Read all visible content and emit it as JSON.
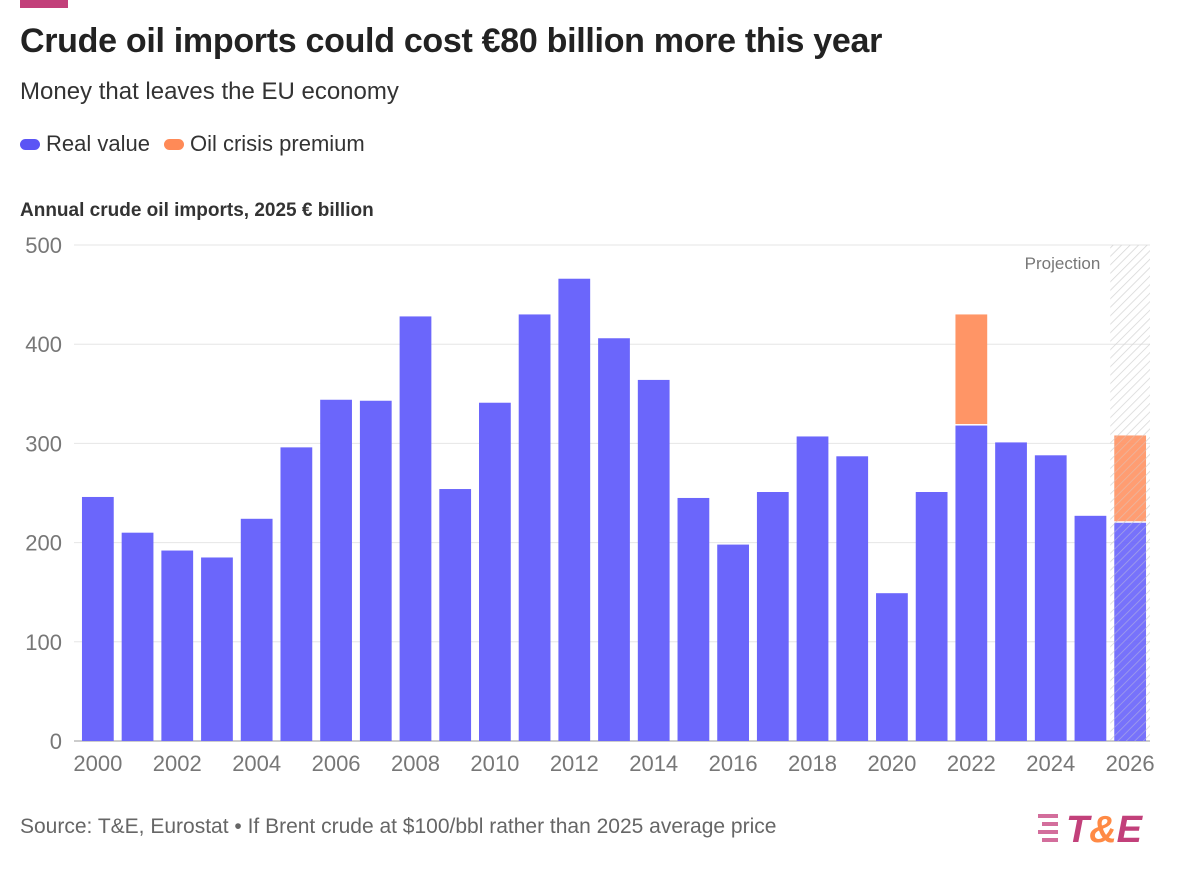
{
  "title": "Crude oil imports could cost €80 billion more this year",
  "subtitle": "Money that leaves the EU economy",
  "source": "Source: T&E, Eurostat • If Brent crude at $100/bbl rather than 2025 average price",
  "logo_text": "T&E",
  "chart_data": {
    "type": "bar",
    "stacked": true,
    "ylabel": "Annual crude oil imports, 2025 € billion",
    "ylim": [
      0,
      500
    ],
    "yticks": [
      0,
      100,
      200,
      300,
      400,
      500
    ],
    "grid": true,
    "legend_placement": "top-left",
    "annotation": "Projection",
    "projection_category": "2026",
    "categories": [
      "2000",
      "2001",
      "2002",
      "2003",
      "2004",
      "2005",
      "2006",
      "2007",
      "2008",
      "2009",
      "2010",
      "2011",
      "2012",
      "2013",
      "2014",
      "2015",
      "2016",
      "2017",
      "2018",
      "2019",
      "2020",
      "2021",
      "2022",
      "2023",
      "2024",
      "2025",
      "2026"
    ],
    "xtick_labels": [
      "2000",
      "2002",
      "2004",
      "2006",
      "2008",
      "2010",
      "2012",
      "2014",
      "2016",
      "2018",
      "2020",
      "2022",
      "2024",
      "2026"
    ],
    "series": [
      {
        "name": "Real value",
        "color": "#6b66fb",
        "values": [
          246,
          210,
          192,
          185,
          224,
          296,
          344,
          343,
          428,
          254,
          341,
          430,
          466,
          406,
          364,
          245,
          198,
          251,
          307,
          287,
          149,
          251,
          318,
          301,
          288,
          227,
          220
        ]
      },
      {
        "name": "Oil crisis premium",
        "color": "#ff9566",
        "values": [
          0,
          0,
          0,
          0,
          0,
          0,
          0,
          0,
          0,
          0,
          0,
          0,
          0,
          0,
          0,
          0,
          0,
          0,
          0,
          0,
          0,
          0,
          112,
          0,
          0,
          0,
          88
        ]
      }
    ]
  }
}
